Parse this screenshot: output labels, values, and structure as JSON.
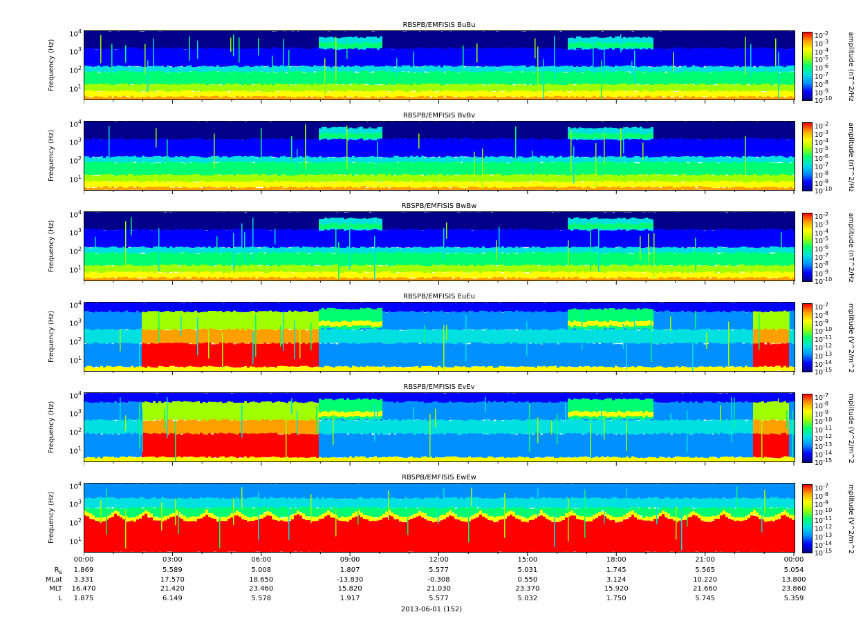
{
  "panels": [
    {
      "title": "RBSPB/EMFISIS  BuBu",
      "ylabel": "Frequency (Hz)",
      "cbar_label": "amplitude (nT^2/Hz)",
      "cbar_exps": [
        "-2",
        "-3",
        "-4",
        "-5",
        "-6",
        "-7",
        "-8",
        "-9",
        "-10"
      ]
    },
    {
      "title": "RBSPB/EMFISIS  BvBv",
      "ylabel": "Frequency (Hz)",
      "cbar_label": "amplitude (nT^2/Hz)",
      "cbar_exps": [
        "-2",
        "-3",
        "-4",
        "-5",
        "-6",
        "-7",
        "-8",
        "-9",
        "-10"
      ]
    },
    {
      "title": "RBSPB/EMFISIS  BwBw",
      "ylabel": "Frequency (Hz)",
      "cbar_label": "amplitude (nT^2/Hz)",
      "cbar_exps": [
        "-2",
        "-3",
        "-4",
        "-5",
        "-6",
        "-7",
        "-8",
        "-9",
        "-10"
      ]
    },
    {
      "title": "RBSPB/EMFISIS  EuEu",
      "ylabel": "Frequency (Hz)",
      "cbar_label": "mplitude (V^2/m^2/",
      "cbar_exps": [
        "-7",
        "-8",
        "-9",
        "-10",
        "-11",
        "-12",
        "-13",
        "-14",
        "-15"
      ]
    },
    {
      "title": "RBSPB/EMFISIS  EvEv",
      "ylabel": "Frequency (Hz)",
      "cbar_label": "mplitude (V^2/m^2/",
      "cbar_exps": [
        "-7",
        "-8",
        "-9",
        "-10",
        "-11",
        "-12",
        "-13",
        "-14",
        "-15"
      ]
    },
    {
      "title": "RBSPB/EMFISIS  EwEw",
      "ylabel": "Frequency (Hz)",
      "cbar_label": "mplitude (V^2/m^2/",
      "cbar_exps": [
        "-7",
        "-8",
        "-9",
        "-10",
        "-11",
        "-12",
        "-13",
        "-14",
        "-15"
      ]
    }
  ],
  "colors": [
    "#00008b",
    "#0000ff",
    "#0090ff",
    "#00e0e0",
    "#00ff70",
    "#a0ff00",
    "#ffff00",
    "#ffa000",
    "#ff0000"
  ],
  "chart_data": {
    "type": "heatmap",
    "y_ticks_exponents": [
      "4",
      "3",
      "2",
      "1"
    ],
    "ylim_hz": [
      2,
      12000
    ],
    "y_scale": "log",
    "x_ticks": [
      "00:00",
      "03:00",
      "06:00",
      "09:00",
      "12:00",
      "15:00",
      "18:00",
      "21:00",
      "00:00"
    ],
    "xlabel": "2013-06-01 (152)",
    "ephemeris": [
      {
        "name": "R",
        "sub": "E",
        "values": [
          "1.869",
          "5.589",
          "5.008",
          "1.807",
          "5.577",
          "5.031",
          "1.745",
          "5.565",
          "5.054"
        ]
      },
      {
        "name": "MLat",
        "sub": "",
        "values": [
          "3.331",
          "17.570",
          "18.650",
          "-13.830",
          "-0.308",
          "0.550",
          "3.124",
          "10.220",
          "13.800"
        ]
      },
      {
        "name": "MLT",
        "sub": "",
        "values": [
          "16.470",
          "21.420",
          "23.460",
          "15.820",
          "21.030",
          "23.370",
          "15.920",
          "21.660",
          "23.860"
        ]
      },
      {
        "name": "L",
        "sub": "",
        "values": [
          "1.875",
          "6.149",
          "5.578",
          "1.917",
          "5.577",
          "5.032",
          "1.750",
          "5.745",
          "5.359"
        ]
      }
    ]
  }
}
